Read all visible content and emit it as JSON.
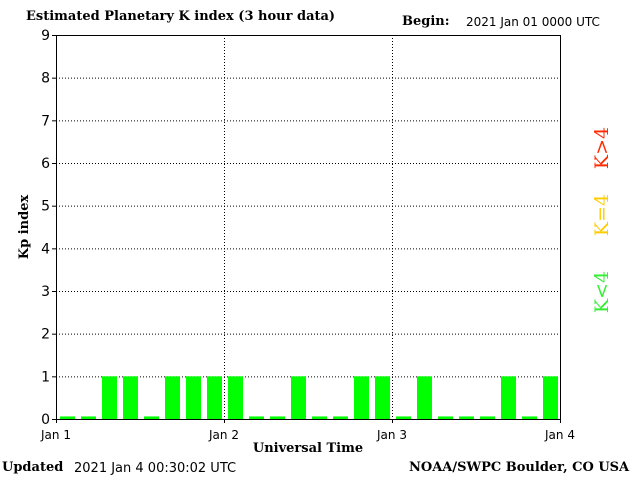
{
  "header": {
    "title": "Estimated Planetary K index (3 hour data)",
    "begin_label": "Begin:",
    "begin_value": "2021 Jan 01 0000 UTC"
  },
  "footer": {
    "updated_label": "Updated",
    "updated_value": "2021 Jan  4 00:30:02 UTC",
    "credit": "NOAA/SWPC Boulder, CO USA"
  },
  "legend": [
    {
      "label": "K>4",
      "color": "#ff2a00"
    },
    {
      "label": "K=4",
      "color": "#ffcc00"
    },
    {
      "label": "K<4",
      "color": "#33ee33"
    }
  ],
  "chart_data": {
    "type": "bar",
    "title": "Estimated Planetary K index (3 hour data)",
    "xlabel": "Universal Time",
    "ylabel": "Kp index",
    "ylim": [
      0,
      9
    ],
    "yticks": [
      "0",
      "1",
      "2",
      "3",
      "4",
      "5",
      "6",
      "7",
      "8",
      "9"
    ],
    "xticks": [
      "Jan 1",
      "Jan 2",
      "Jan 3",
      "Jan 4"
    ],
    "grid": true,
    "interval_hours": 3,
    "bar_color": "#00ff00",
    "values": [
      0,
      0,
      1,
      1,
      0,
      1,
      1,
      1,
      1,
      0,
      0,
      1,
      0,
      0,
      1,
      1,
      0,
      1,
      0,
      0,
      0,
      1,
      0,
      1
    ]
  }
}
